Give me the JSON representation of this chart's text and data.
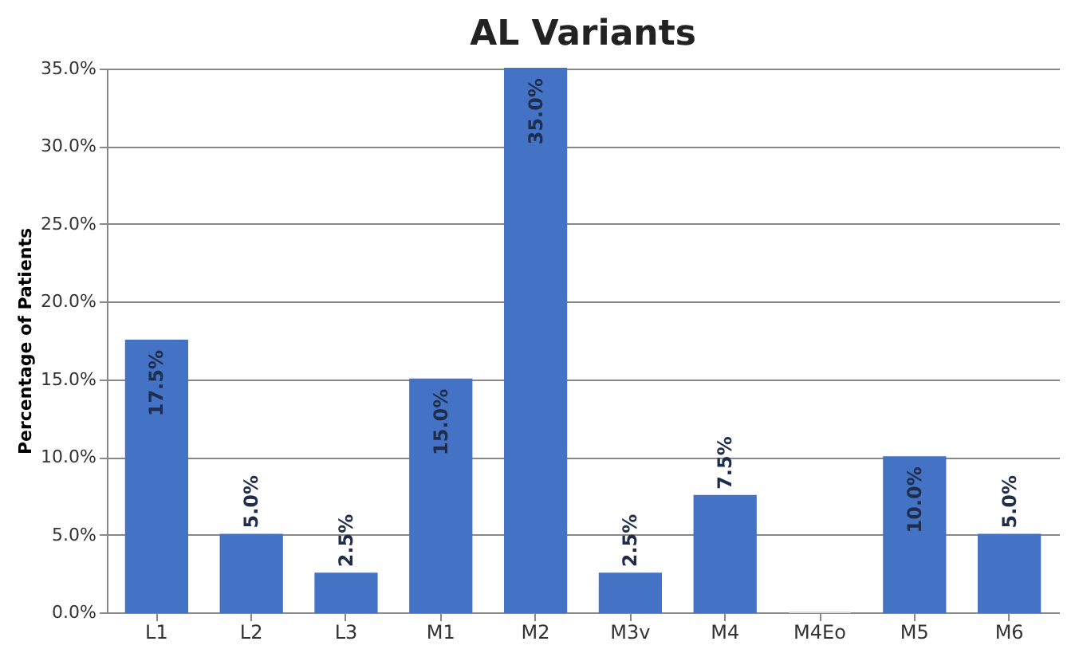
{
  "chart_data": {
    "type": "bar",
    "title": "AL Variants",
    "ylabel": "Percentage of Patients",
    "categories": [
      "L1",
      "L2",
      "L3",
      "M1",
      "M2",
      "M3v",
      "M4",
      "M4Eo",
      "M5",
      "M6"
    ],
    "values": [
      17.5,
      5.0,
      2.5,
      15.0,
      35.0,
      2.5,
      7.5,
      0,
      10.0,
      5.0
    ],
    "value_labels": [
      "17.5%",
      "5.0%",
      "2.5%",
      "15.0%",
      "35.0%",
      "2.5%",
      "7.5%",
      null,
      "10.0%",
      "5.0%"
    ],
    "colors": [
      "#4472c4",
      "#4472c4",
      "#4472c4",
      "#4472c4",
      "#4472c4",
      "#4472c4",
      "#4472c4",
      "#d9d9d9",
      "#4472c4",
      "#4472c4"
    ],
    "ylim": [
      0,
      35
    ],
    "yticks": [
      {
        "value": 0,
        "label": "0.0%"
      },
      {
        "value": 5,
        "label": "5.0%"
      },
      {
        "value": 10,
        "label": "10.0%"
      },
      {
        "value": 15,
        "label": "15.0%"
      },
      {
        "value": 20,
        "label": "20.0%"
      },
      {
        "value": 25,
        "label": "25.0%"
      },
      {
        "value": 30,
        "label": "30.0%"
      },
      {
        "value": 35,
        "label": "35.0%"
      }
    ],
    "grid": "y"
  }
}
